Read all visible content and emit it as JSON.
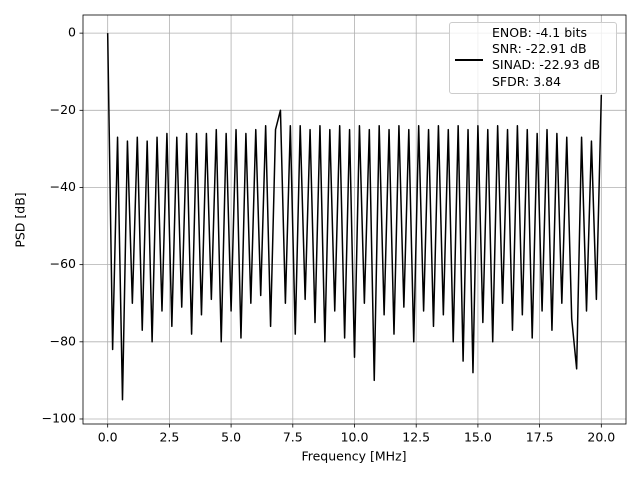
{
  "chart_data": {
    "type": "line",
    "xlabel": "Frequency [MHz]",
    "ylabel": "PSD [dB]",
    "x": [
      0,
      0.2,
      0.4,
      0.6,
      0.8,
      1,
      1.2,
      1.4,
      1.6,
      1.8,
      2,
      2.2,
      2.4,
      2.6,
      2.8,
      3,
      3.2,
      3.4,
      3.6,
      3.8,
      4,
      4.2,
      4.4,
      4.6,
      4.8,
      5,
      5.2,
      5.4,
      5.6,
      5.8,
      6,
      6.2,
      6.4,
      6.6,
      6.8,
      7,
      7.2,
      7.4,
      7.6,
      7.8,
      8,
      8.2,
      8.4,
      8.6,
      8.8,
      9,
      9.2,
      9.4,
      9.6,
      9.8,
      10,
      10.2,
      10.4,
      10.6,
      10.8,
      11,
      11.2,
      11.4,
      11.6,
      11.8,
      12,
      12.2,
      12.4,
      12.6,
      12.8,
      13,
      13.2,
      13.4,
      13.6,
      13.8,
      14,
      14.2,
      14.4,
      14.6,
      14.8,
      15,
      15.2,
      15.4,
      15.6,
      15.8,
      16,
      16.2,
      16.4,
      16.6,
      16.8,
      17,
      17.2,
      17.4,
      17.6,
      17.8,
      18,
      18.2,
      18.4,
      18.6,
      18.8,
      19,
      19.2,
      19.4,
      19.6,
      19.8,
      20
    ],
    "series": [
      {
        "name": "ENOB: -4.1 bits\nSNR: -22.91 dB\nSINAD: -22.93 dB\nSFDR: 3.84",
        "color": "#000000",
        "values": [
          0,
          -82,
          -27,
          -95,
          -28,
          -70,
          -27,
          -77,
          -28,
          -80,
          -27,
          -72,
          -26,
          -76,
          -27,
          -71,
          -26,
          -78,
          -26,
          -73,
          -26,
          -69,
          -25,
          -80,
          -26,
          -72,
          -25,
          -79,
          -26,
          -70,
          -25,
          -68,
          -24,
          -76,
          -25,
          -20,
          -70,
          -24,
          -78,
          -24,
          -69,
          -25,
          -75,
          -24,
          -80,
          -25,
          -72,
          -24,
          -79,
          -25,
          -84,
          -24,
          -70,
          -25,
          -90,
          -24,
          -73,
          -25,
          -78,
          -24,
          -71,
          -25,
          -80,
          -24,
          -72,
          -25,
          -76,
          -24,
          -73,
          -25,
          -80,
          -24,
          -85,
          -25,
          -88,
          -24,
          -75,
          -25,
          -80,
          -24,
          -70,
          -25,
          -77,
          -24,
          -73,
          -25,
          -79,
          -26,
          -72,
          -25,
          -77,
          -26,
          -70,
          -27,
          -74,
          -87,
          -27,
          -72,
          -28,
          -69,
          -16
        ]
      }
    ],
    "xlim": [
      -1,
      21
    ],
    "ylim": [
      -101.3,
      4.7
    ],
    "xticks": [
      {
        "value": 0,
        "label": "0.0"
      },
      2.5,
      {
        "value": 5,
        "label": "5.0"
      },
      7.5,
      {
        "value": 10,
        "label": "10.0"
      },
      12.5,
      {
        "value": 15,
        "label": "15.0"
      },
      17.5,
      {
        "value": 20,
        "label": "20.0"
      }
    ],
    "yticks": [
      {
        "value": -100,
        "label": "−100"
      },
      {
        "value": -80,
        "label": "−80"
      },
      {
        "value": -60,
        "label": "−60"
      },
      {
        "value": -40,
        "label": "−40"
      },
      {
        "value": -20,
        "label": "−20"
      },
      0
    ],
    "grid": true,
    "legend": "upper right"
  }
}
